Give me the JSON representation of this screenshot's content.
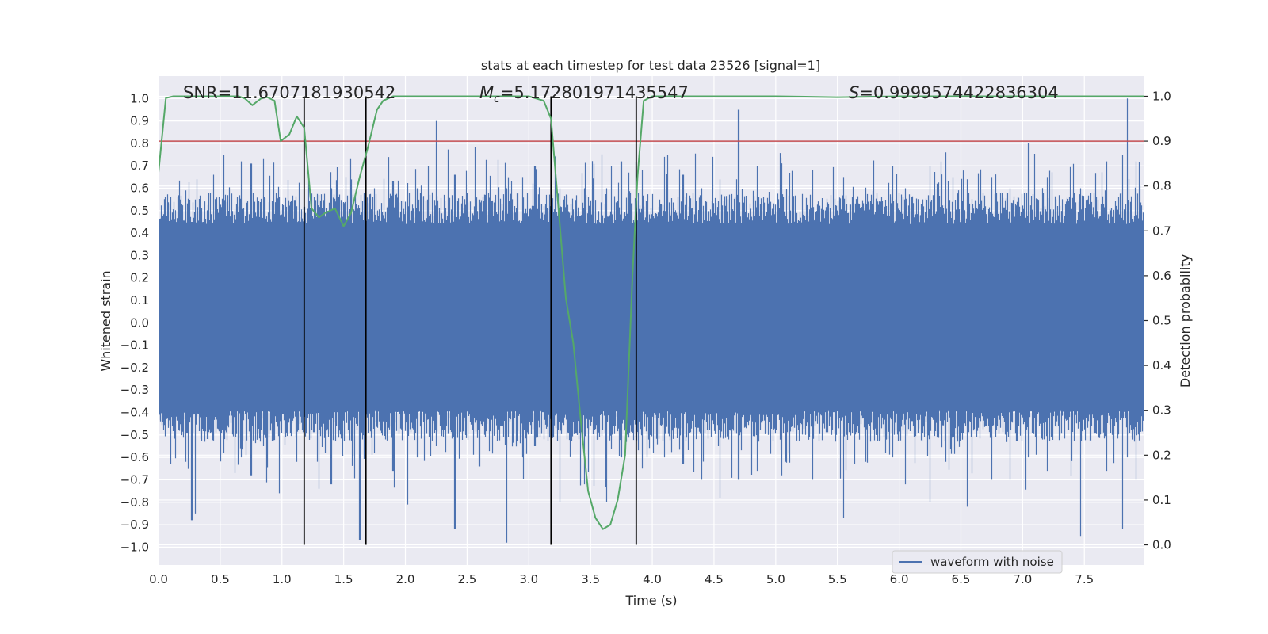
{
  "chart_data": {
    "type": "line",
    "title": "stats at each timestep for test data 23526 [signal=1]",
    "xlabel": "Time (s)",
    "ylabel": "Whitened strain",
    "y2label": "Detection probability",
    "xlim": [
      0,
      7.98
    ],
    "ylim": [
      -1.08,
      1.1
    ],
    "y2lim": [
      -0.045,
      1.045
    ],
    "x_ticks": [
      0,
      0.5,
      1,
      1.5,
      2,
      2.5,
      3,
      3.5,
      4,
      4.5,
      5,
      5.5,
      6,
      6.5,
      7,
      7.5
    ],
    "x_tick_labels": [
      "0.0",
      "0.5",
      "1.0",
      "1.5",
      "2.0",
      "2.5",
      "3.0",
      "3.5",
      "4.0",
      "4.5",
      "5.0",
      "5.5",
      "6.0",
      "6.5",
      "7.0",
      "7.5"
    ],
    "y_ticks": [
      -1,
      -0.9,
      -0.8,
      -0.7,
      -0.6,
      -0.5,
      -0.4,
      -0.3,
      -0.2,
      -0.1,
      0,
      0.1,
      0.2,
      0.3,
      0.4,
      0.5,
      0.6,
      0.7,
      0.8,
      0.9,
      1
    ],
    "y_tick_labels": [
      "−1.0",
      "−0.9",
      "−0.8",
      "−0.7",
      "−0.6",
      "−0.5",
      "−0.4",
      "−0.3",
      "−0.2",
      "−0.1",
      "0.0",
      "0.1",
      "0.2",
      "0.3",
      "0.4",
      "0.5",
      "0.6",
      "0.7",
      "0.8",
      "0.9",
      "1.0"
    ],
    "y2_ticks": [
      0,
      0.1,
      0.2,
      0.3,
      0.4,
      0.5,
      0.6,
      0.7,
      0.8,
      0.9,
      1
    ],
    "y2_tick_labels": [
      "0.0",
      "0.1",
      "0.2",
      "0.3",
      "0.4",
      "0.5",
      "0.6",
      "0.7",
      "0.8",
      "0.9",
      "1.0"
    ],
    "annotations": {
      "snr": "SNR=11.6707181930542",
      "mc_symbol": "M",
      "mc_sub": "c",
      "mc_value": "=5.172801971435547",
      "s_symbol": "S",
      "s_value": "=0.9999574422836304"
    },
    "threshold": {
      "value": 0.9,
      "axis": "y2",
      "color": "#c44e52"
    },
    "vertical_lines": {
      "x": [
        1.18,
        1.68,
        3.18,
        3.87
      ],
      "y2_range": [
        0,
        1
      ],
      "color": "#000000"
    },
    "legend": {
      "label": "waveform with noise",
      "location": "lower-right",
      "color": "#4c72b0"
    },
    "series": [
      {
        "name": "waveform with noise",
        "color": "#4c72b0",
        "axis": "y",
        "kind": "dense-noise",
        "sample_rate_hz": 2048,
        "core_range": [
          -0.37,
          0.42
        ],
        "extremes": [
          {
            "x": 0.1,
            "min": -0.63,
            "max": 0.48
          },
          {
            "x": 0.22,
            "min": -0.62,
            "max": 0.59
          },
          {
            "x": 0.27,
            "min": -0.88,
            "max": 0.45
          },
          {
            "x": 0.3,
            "min": -0.85,
            "max": 0.55
          },
          {
            "x": 0.53,
            "min": -0.58,
            "max": 0.75
          },
          {
            "x": 0.67,
            "min": -0.6,
            "max": 0.72
          },
          {
            "x": 0.75,
            "min": -0.68,
            "max": 0.71
          },
          {
            "x": 0.85,
            "min": -0.55,
            "max": 0.73
          },
          {
            "x": 0.98,
            "min": -0.76,
            "max": 0.56
          },
          {
            "x": 1.12,
            "min": -0.62,
            "max": 0.52
          },
          {
            "x": 1.3,
            "min": -0.74,
            "max": 0.57
          },
          {
            "x": 1.4,
            "min": -0.72,
            "max": 0.6
          },
          {
            "x": 1.63,
            "min": -0.97,
            "max": 0.46
          },
          {
            "x": 1.75,
            "min": -0.58,
            "max": 0.6
          },
          {
            "x": 1.9,
            "min": -0.66,
            "max": 0.63
          },
          {
            "x": 2.02,
            "min": -0.81,
            "max": 0.6
          },
          {
            "x": 2.1,
            "min": -0.6,
            "max": 0.6
          },
          {
            "x": 2.25,
            "min": -0.55,
            "max": 0.9
          },
          {
            "x": 2.4,
            "min": -0.92,
            "max": 0.66
          },
          {
            "x": 2.6,
            "min": -0.64,
            "max": 0.55
          },
          {
            "x": 2.82,
            "min": -0.98,
            "max": 0.6
          },
          {
            "x": 2.95,
            "min": -0.6,
            "max": 0.65
          },
          {
            "x": 3.05,
            "min": -0.55,
            "max": 0.7
          },
          {
            "x": 3.25,
            "min": -0.8,
            "max": 0.6
          },
          {
            "x": 3.45,
            "min": -0.72,
            "max": 0.6
          },
          {
            "x": 3.63,
            "min": -0.8,
            "max": 0.6
          },
          {
            "x": 3.75,
            "min": -0.6,
            "max": 0.72
          },
          {
            "x": 3.92,
            "min": -0.65,
            "max": 0.68
          },
          {
            "x": 4.1,
            "min": -0.6,
            "max": 0.74
          },
          {
            "x": 4.25,
            "min": -0.63,
            "max": 0.66
          },
          {
            "x": 4.4,
            "min": -0.7,
            "max": 0.6
          },
          {
            "x": 4.55,
            "min": -0.78,
            "max": 0.55
          },
          {
            "x": 4.7,
            "min": -0.7,
            "max": 0.95
          },
          {
            "x": 4.85,
            "min": -0.66,
            "max": 0.7
          },
          {
            "x": 5.05,
            "min": -0.68,
            "max": 0.63
          },
          {
            "x": 5.3,
            "min": -0.7,
            "max": 0.68
          },
          {
            "x": 5.55,
            "min": -0.87,
            "max": 0.65
          },
          {
            "x": 5.73,
            "min": -0.62,
            "max": 0.6
          },
          {
            "x": 5.95,
            "min": -0.6,
            "max": 0.7
          },
          {
            "x": 6.05,
            "min": -0.72,
            "max": 0.6
          },
          {
            "x": 6.25,
            "min": -0.8,
            "max": 0.7
          },
          {
            "x": 6.38,
            "min": -0.62,
            "max": 0.76
          },
          {
            "x": 6.55,
            "min": -0.82,
            "max": 0.64
          },
          {
            "x": 6.75,
            "min": -0.7,
            "max": 0.65
          },
          {
            "x": 6.9,
            "min": -0.7,
            "max": 0.6
          },
          {
            "x": 7.05,
            "min": -0.6,
            "max": 0.8
          },
          {
            "x": 7.2,
            "min": -0.66,
            "max": 0.65
          },
          {
            "x": 7.47,
            "min": -0.95,
            "max": 0.6
          },
          {
            "x": 7.68,
            "min": -0.66,
            "max": 0.72
          },
          {
            "x": 7.81,
            "min": -0.92,
            "max": 0.75
          },
          {
            "x": 7.85,
            "min": -0.6,
            "max": 1.0
          },
          {
            "x": 7.92,
            "min": -0.7,
            "max": 0.72
          }
        ]
      },
      {
        "name": "detection probability",
        "color": "#55a868",
        "axis": "y2",
        "x": [
          0,
          0.06,
          0.12,
          0.25,
          0.5,
          0.65,
          0.7,
          0.76,
          0.83,
          0.88,
          0.94,
          0.99,
          1.06,
          1.12,
          1.18,
          1.24,
          1.3,
          1.35,
          1.43,
          1.5,
          1.56,
          1.63,
          1.7,
          1.77,
          1.82,
          1.9,
          2,
          2.5,
          3,
          3.12,
          3.18,
          3.24,
          3.3,
          3.36,
          3.42,
          3.48,
          3.54,
          3.6,
          3.66,
          3.72,
          3.78,
          3.84,
          3.88,
          3.93,
          4,
          5,
          5.5,
          6,
          6.5,
          7,
          7.5,
          7.98
        ],
        "y": [
          0.83,
          0.996,
          1.0,
          1.0,
          1.0,
          1.0,
          0.995,
          0.98,
          0.995,
          0.998,
          0.99,
          0.9,
          0.915,
          0.955,
          0.93,
          0.75,
          0.73,
          0.74,
          0.75,
          0.71,
          0.74,
          0.82,
          0.89,
          0.97,
          0.99,
          1.0,
          1.0,
          1.0,
          1.0,
          0.99,
          0.95,
          0.75,
          0.55,
          0.45,
          0.28,
          0.12,
          0.06,
          0.035,
          0.045,
          0.1,
          0.2,
          0.6,
          0.82,
          0.99,
          1.0,
          1.0,
          0.998,
          1.0,
          1.0,
          1.0,
          1.0,
          1.0
        ]
      }
    ]
  }
}
